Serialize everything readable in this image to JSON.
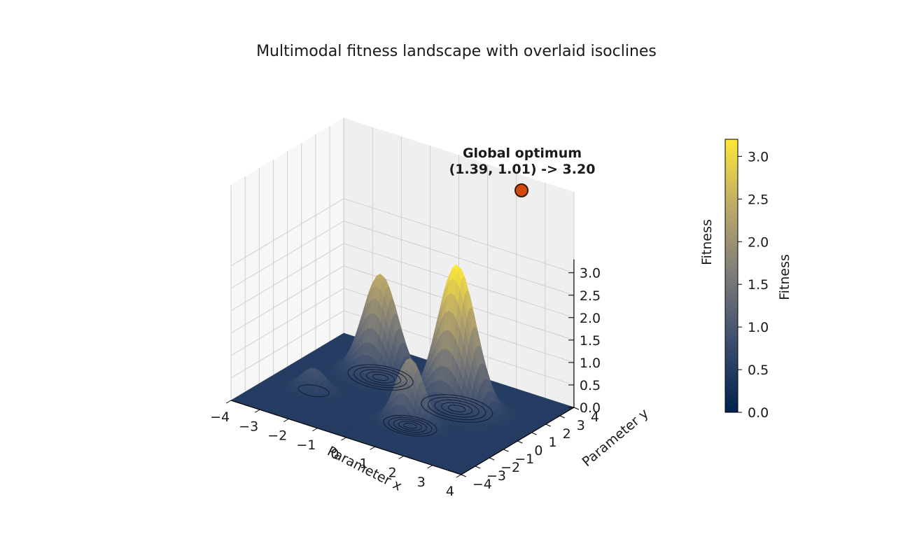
{
  "chart_data": {
    "type": "surface3d",
    "title": "Multimodal fitness landscape with overlaid isoclines",
    "xlabel": "Parameter x",
    "ylabel": "Parameter y",
    "zlabel": "Fitness",
    "xlim": [
      -4,
      4
    ],
    "ylim": [
      -4,
      4
    ],
    "zlim": [
      0,
      3.3
    ],
    "x_ticks": [
      "−4",
      "−3",
      "−2",
      "−1",
      "0",
      "1",
      "2",
      "3",
      "4"
    ],
    "y_ticks": [
      "−4",
      "−3",
      "−2",
      "−1",
      "0",
      "1",
      "2",
      "3",
      "4"
    ],
    "z_ticks": [
      "0.0",
      "0.5",
      "1.0",
      "1.5",
      "2.0",
      "2.5",
      "3.0"
    ],
    "colormap": "cividis",
    "colorbar": {
      "label": "Fitness",
      "range": [
        0,
        3.2
      ],
      "ticks": [
        "0.0",
        "0.5",
        "1.0",
        "1.5",
        "2.0",
        "2.5",
        "3.0"
      ]
    },
    "peaks": [
      {
        "x": 1.4,
        "y": 1.0,
        "height": 3.2,
        "width": 0.6
      },
      {
        "x": -1.5,
        "y": 1.5,
        "height": 2.3,
        "width": 0.55
      },
      {
        "x": 1.0,
        "y": -1.5,
        "height": 1.5,
        "width": 0.45
      },
      {
        "x": -2.5,
        "y": -1.2,
        "height": 0.5,
        "width": 0.4
      }
    ],
    "annotation": {
      "line1": "Global optimum",
      "line2": "(1.39, 1.01) -> 3.20",
      "x": 1.39,
      "y": 1.01,
      "z": 3.2,
      "marker_color": "#d14a0b"
    },
    "grid": true,
    "colors": {
      "surface_low": "#1f3f6e",
      "surface_high": "#f3e04a",
      "pane": "#f2f2f2"
    }
  }
}
